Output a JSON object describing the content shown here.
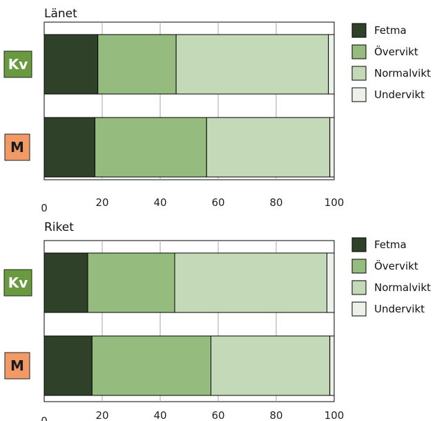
{
  "colors": {
    "fetma": "#2f4229",
    "overvikt": "#95bb7e",
    "normalvikt": "#c3d9b8",
    "undervikt": "#ecf2e9",
    "grid": "#a6a6a6",
    "badge_kv_bg": "#6a9a3f",
    "badge_kv_text": "#ffffff",
    "badge_m_bg": "#f29a67",
    "badge_m_text": "#1a1a1a"
  },
  "chart_data": [
    {
      "type": "bar",
      "orientation": "horizontal",
      "stacked": true,
      "title": "Länet",
      "categories": [
        "Kv",
        "M"
      ],
      "series": [
        {
          "name": "Fetma",
          "values": [
            18.5,
            17.5
          ]
        },
        {
          "name": "Övervikt",
          "values": [
            27,
            38.5
          ]
        },
        {
          "name": "Normalvikt",
          "values": [
            52.5,
            42.5
          ]
        },
        {
          "name": "Undervikt",
          "values": [
            2,
            1.5
          ]
        }
      ],
      "xlim": [
        0,
        100
      ],
      "xticks": [
        "0",
        "20",
        "40",
        "60",
        "80",
        "100"
      ],
      "grid": true,
      "legend": "right"
    },
    {
      "type": "bar",
      "orientation": "horizontal",
      "stacked": true,
      "title": "Riket",
      "categories": [
        "Kv",
        "M"
      ],
      "series": [
        {
          "name": "Fetma",
          "values": [
            15,
            16.5
          ]
        },
        {
          "name": "Övervikt",
          "values": [
            30,
            41
          ]
        },
        {
          "name": "Normalvikt",
          "values": [
            52.5,
            41
          ]
        },
        {
          "name": "Undervikt",
          "values": [
            2.5,
            1.5
          ]
        }
      ],
      "xlim": [
        0,
        100
      ],
      "xticks": [
        "0",
        "20",
        "40",
        "60",
        "80",
        "100"
      ],
      "grid": true,
      "legend": "right"
    }
  ]
}
